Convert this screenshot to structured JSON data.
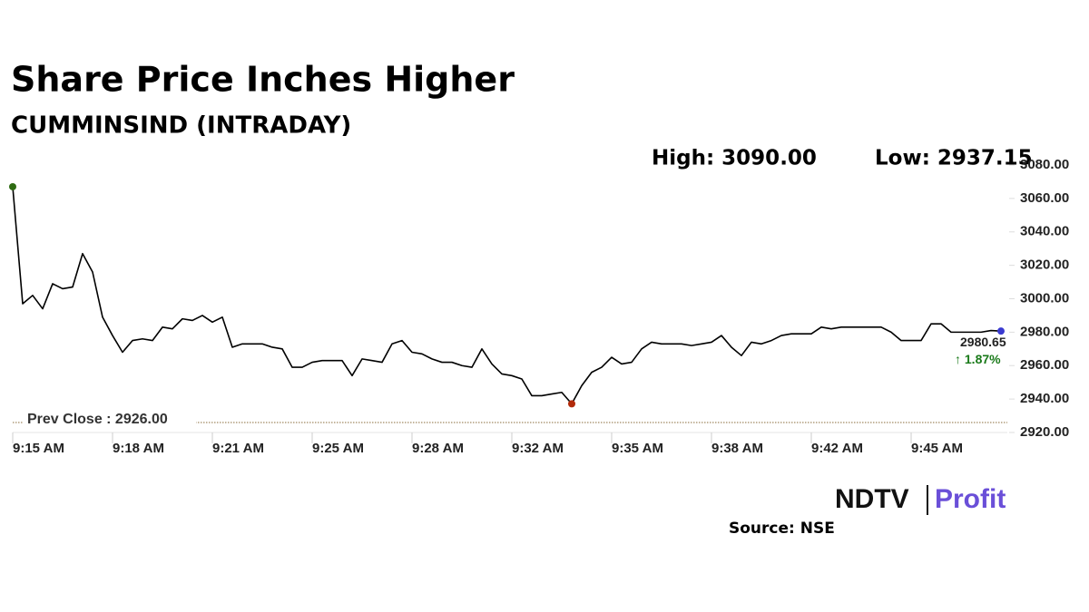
{
  "chart_data": {
    "type": "line",
    "title": "Share Price Inches Higher",
    "subtitle": "CUMMINSIND (INTRADAY)",
    "high_label": "High: 3090.00",
    "low_label": "Low: 2937.15",
    "categories": [
      "9:15 AM",
      null,
      null,
      null,
      null,
      null,
      null,
      null,
      null,
      null,
      "9:18 AM",
      null,
      null,
      null,
      null,
      null,
      null,
      null,
      null,
      null,
      "9:21 AM",
      null,
      null,
      null,
      null,
      null,
      null,
      null,
      null,
      null,
      "9:25 AM",
      null,
      null,
      null,
      null,
      null,
      null,
      null,
      null,
      null,
      "9:28 AM",
      null,
      null,
      null,
      null,
      null,
      null,
      null,
      null,
      null,
      "9:32 AM",
      null,
      null,
      null,
      null,
      null,
      null,
      null,
      null,
      null,
      "9:35 AM",
      null,
      null,
      null,
      null,
      null,
      null,
      null,
      null,
      null,
      "9:38 AM",
      null,
      null,
      null,
      null,
      null,
      null,
      null,
      null,
      null,
      "9:42 AM",
      null,
      null,
      null,
      null,
      null,
      null,
      null,
      null,
      null,
      "9:45 AM",
      null,
      null,
      null,
      null,
      null,
      null,
      null,
      null,
      null
    ],
    "series": [
      {
        "color": "#000000",
        "values": [
          3067,
          2997,
          3002,
          2994,
          3009,
          3006,
          3007,
          3027,
          3016,
          2989,
          2978,
          2968,
          2975,
          2976,
          2975,
          2983,
          2982,
          2988,
          2987,
          2990,
          2986,
          2989,
          2971,
          2973,
          2973,
          2973,
          2971,
          2970,
          2959,
          2959,
          2962,
          2963,
          2963,
          2963,
          2954,
          2964,
          2963,
          2962,
          2973,
          2975,
          2968,
          2967,
          2964,
          2962,
          2962,
          2960,
          2959,
          2970,
          2961,
          2955,
          2954,
          2952,
          2942,
          2942,
          2943,
          2944,
          2937.15,
          2948,
          2956,
          2959,
          2965,
          2961,
          2962,
          2970,
          2974,
          2973,
          2973,
          2973,
          2972,
          2973,
          2974,
          2978,
          2971,
          2966,
          2974,
          2973,
          2975,
          2978,
          2979,
          2979,
          2979,
          2983,
          2982,
          2983,
          2983,
          2983,
          2983,
          2983,
          2980,
          2975,
          2975,
          2975,
          2985,
          2985,
          2980,
          2980,
          2980,
          2980,
          2981,
          2980.65
        ]
      }
    ],
    "marker_colors": {
      "start": "#2e6b12",
      "low": "#b22a0a",
      "end": "#3a3ad0"
    },
    "ylim": [
      2920,
      3080
    ],
    "yticks": [
      {
        "value": 2920,
        "label": "2920.00"
      },
      {
        "value": 2940,
        "label": "2940.00"
      },
      {
        "value": 2960,
        "label": "2960.00"
      },
      {
        "value": 2980,
        "label": "2980.00"
      },
      {
        "value": 3000,
        "label": "3000.00"
      },
      {
        "value": 3020,
        "label": "3020.00"
      },
      {
        "value": 3040,
        "label": "3040.00"
      },
      {
        "value": 3060,
        "label": "3060.00"
      },
      {
        "value": 3080,
        "label": "3080.00"
      }
    ],
    "prev_close": 2926,
    "prev_close_label": "Prev Close : 2926.00",
    "last_price_label": "2980.65",
    "change_label": "↑ 1.87%",
    "change_color": "#1a7a1a",
    "logo": [
      "NDTV",
      "Profit"
    ],
    "source": "Source: NSE"
  }
}
